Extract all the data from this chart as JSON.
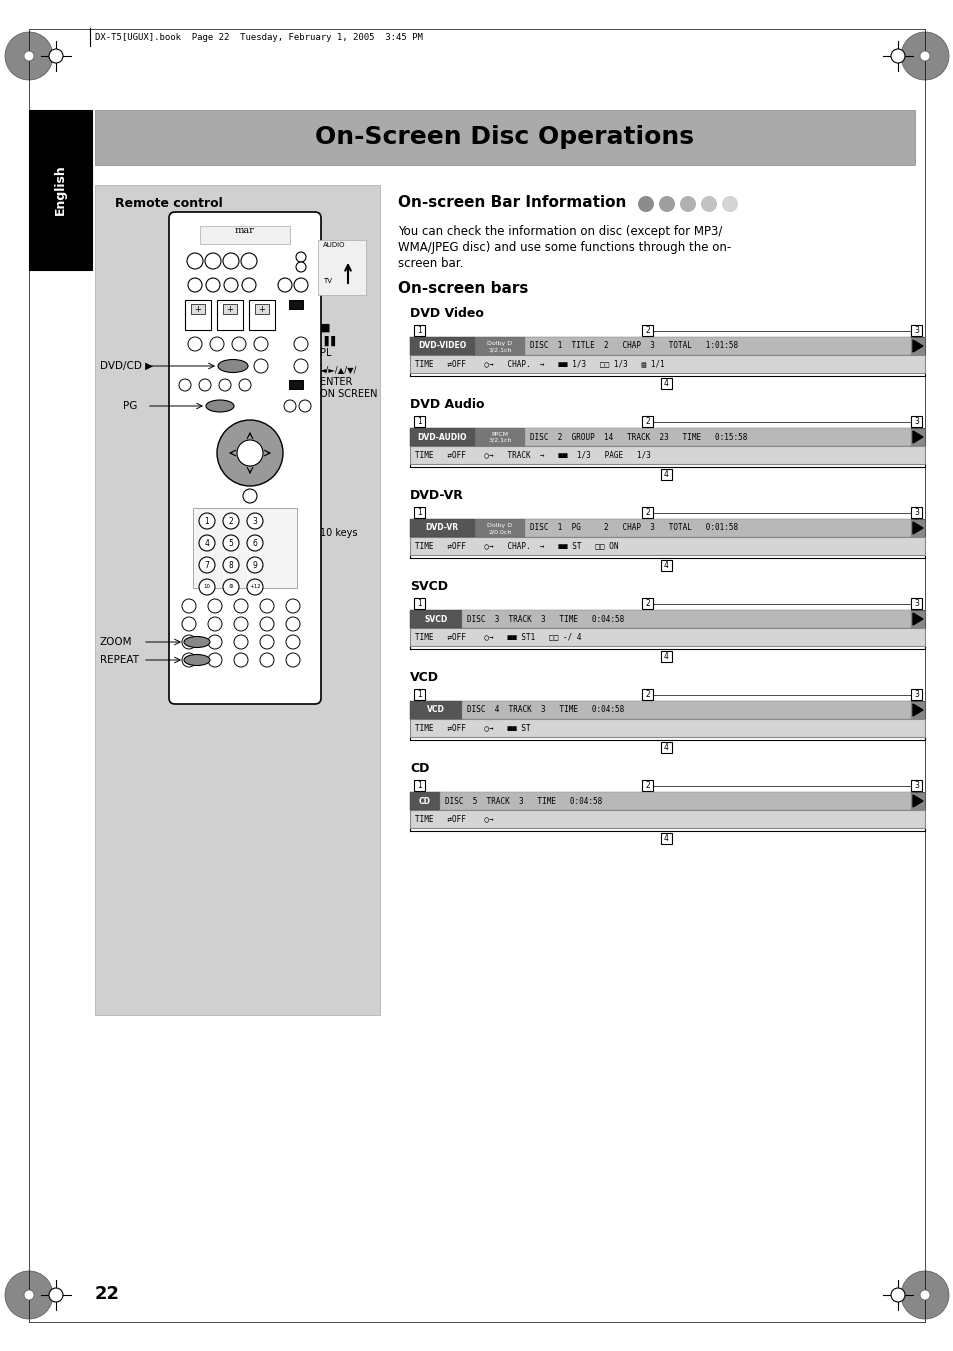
{
  "page_bg": "#ffffff",
  "header_text": "DX-T5[UGUX].book  Page 22  Tuesday, February 1, 2005  3:45 PM",
  "title_bg": "#aaaaaa",
  "title_text": "On-Screen Disc Operations",
  "section_title": "On-screen Bar Information",
  "body_text1": "You can check the information on disc (except for MP3/",
  "body_text2": "WMA/JPEG disc) and use some functions through the on-",
  "body_text3": "screen bar.",
  "subsection_title": "On-screen bars",
  "bar_sections": [
    {
      "label": "DVD Video",
      "dark_lbl": "DVD-VIDEO",
      "dark2_lbl": "Dolby D\n3/2.1ch",
      "has_dark2": true,
      "row1_txt": "DISC  1  TITLE  2   CHAP  3   TOTAL   1:01:58",
      "row2_txt": "TIME   ⇄OFF    ○→   CHAP.  →   ■■ 1/3   □□ 1/3   ▤ 1/1"
    },
    {
      "label": "DVD Audio",
      "dark_lbl": "DVD-AUDIO",
      "dark2_lbl": "PPCM\n3/2.1ch",
      "has_dark2": true,
      "row1_txt": "DISC  2  GROUP  14   TRACK  23   TIME   0:15:58",
      "row2_txt": "TIME   ⇄OFF    ○→   TRACK  →   ■■  1/3   PAGE   1/3"
    },
    {
      "label": "DVD-VR",
      "dark_lbl": "DVD-VR",
      "dark2_lbl": "Dolby D\n2/0.0ch",
      "has_dark2": true,
      "row1_txt": "DISC  1  PG     2   CHAP  3   TOTAL   0:01:58",
      "row2_txt": "TIME   ⇄OFF    ○→   CHAP.  →   ■■ ST   □□ ON"
    },
    {
      "label": "SVCD",
      "dark_lbl": "SVCD",
      "dark2_lbl": "",
      "has_dark2": false,
      "row1_txt": "DISC  3  TRACK  3   TIME   0:04:58",
      "row2_txt": "TIME   ⇄OFF    ○→   ■■ ST1   □□ -/ 4"
    },
    {
      "label": "VCD",
      "dark_lbl": "VCD",
      "dark2_lbl": "",
      "has_dark2": false,
      "row1_txt": "DISC  4  TRACK  3   TIME   0:04:58",
      "row2_txt": "TIME   ⇄OFF    ○→   ■■ ST"
    },
    {
      "label": "CD",
      "dark_lbl": "CD",
      "dark2_lbl": "",
      "has_dark2": false,
      "row1_txt": "DISC  5  TRACK  3   TIME   0:04:58",
      "row2_txt": "TIME   ⇄OFF    ○→"
    }
  ],
  "page_number": "22"
}
